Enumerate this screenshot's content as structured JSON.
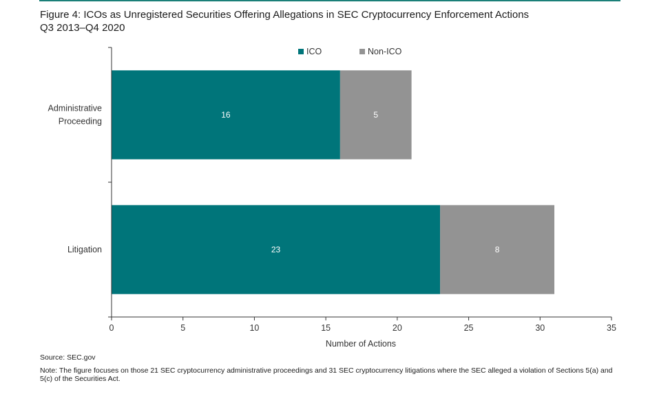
{
  "colors": {
    "rule": "#1a7f78",
    "ico": "#00757a",
    "non_ico": "#939393",
    "axis": "#333333"
  },
  "header": {
    "title_line1": "Figure 4: ICOs as Unregistered Securities Offering Allegations in SEC Cryptocurrency Enforcement Actions",
    "title_line2": "Q3 2013–Q4 2020"
  },
  "chart_data": {
    "type": "bar",
    "orientation": "horizontal",
    "stacked": true,
    "categories": [
      "Administrative Proceeding",
      "Litigation"
    ],
    "category_lines": [
      [
        "Administrative",
        "Proceeding"
      ],
      [
        "Litigation"
      ]
    ],
    "series": [
      {
        "name": "ICO",
        "values": [
          16,
          23
        ]
      },
      {
        "name": "Non-ICO",
        "values": [
          5,
          8
        ]
      }
    ],
    "xlabel": "Number of Actions",
    "ylabel": "",
    "xlim": [
      0,
      35
    ],
    "xticks": [
      0,
      5,
      10,
      15,
      20,
      25,
      30,
      35
    ],
    "data_labels": true,
    "grid": false,
    "legend_position": "top-center"
  },
  "footer": {
    "source": "Source: SEC.gov",
    "note": "Note: The figure focuses on those 21 SEC cryptocurrency administrative proceedings and 31 SEC cryptocurrency litigations where the SEC alleged a violation of Sections 5(a) and 5(c) of the Securities Act."
  }
}
